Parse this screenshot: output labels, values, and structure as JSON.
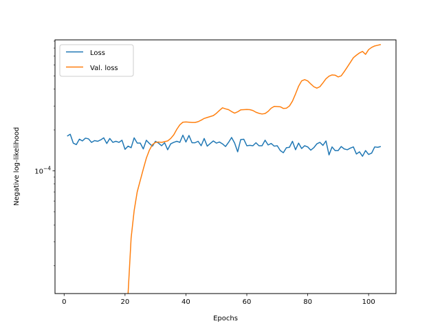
{
  "chart_data": {
    "type": "line",
    "xlabel": "Epochs",
    "ylabel": "Negative log-likelihood",
    "yscale": "log",
    "xlim": [
      -3,
      109
    ],
    "ylim": [
      1.25e-05,
      0.00092
    ],
    "x_ticks": [
      0,
      20,
      40,
      60,
      80,
      100
    ],
    "x_tick_labels": [
      "0",
      "20",
      "40",
      "60",
      "80",
      "100"
    ],
    "y_ticks": [
      0.0001
    ],
    "y_tick_labels": [
      {
        "base": "10",
        "exp": "−4"
      }
    ],
    "grid": false,
    "legend_position": "top-left",
    "series": [
      {
        "name": "Loss",
        "color": "#1f77b4",
        "x": [
          1,
          2,
          3,
          4,
          5,
          6,
          7,
          8,
          9,
          10,
          11,
          12,
          13,
          14,
          15,
          16,
          17,
          18,
          19,
          20,
          21,
          22,
          23,
          24,
          25,
          26,
          27,
          28,
          29,
          30,
          31,
          32,
          33,
          34,
          35,
          36,
          37,
          38,
          39,
          40,
          41,
          42,
          43,
          44,
          45,
          46,
          47,
          48,
          49,
          50,
          51,
          52,
          53,
          54,
          55,
          56,
          57,
          58,
          59,
          60,
          61,
          62,
          63,
          64,
          65,
          66,
          67,
          68,
          69,
          70,
          71,
          72,
          73,
          74,
          75,
          76,
          77,
          78,
          79,
          80,
          81,
          82,
          83,
          84,
          85,
          86,
          87,
          88,
          89,
          90,
          91,
          92,
          93,
          94,
          95,
          96,
          97,
          98,
          99,
          100,
          101,
          102,
          103,
          104
        ],
        "values": [
          0.00018,
          0.000186,
          0.00016,
          0.000156,
          0.000171,
          0.000166,
          0.000174,
          0.000172,
          0.000162,
          0.000167,
          0.000165,
          0.000169,
          0.000175,
          0.000159,
          0.000173,
          0.000162,
          0.000165,
          0.000162,
          0.000168,
          0.000144,
          0.000152,
          0.000148,
          0.000175,
          0.00016,
          0.00016,
          0.000145,
          0.000168,
          0.000159,
          0.000152,
          0.000165,
          0.00016,
          0.000153,
          0.000161,
          0.000143,
          0.000158,
          0.000162,
          0.000165,
          0.000162,
          0.000183,
          0.000163,
          0.000182,
          0.000161,
          0.000161,
          0.000165,
          0.000153,
          0.000173,
          0.000152,
          0.000159,
          0.000166,
          0.00016,
          0.000163,
          0.000158,
          0.000151,
          0.000162,
          0.000176,
          0.00016,
          0.000138,
          0.00017,
          0.000171,
          0.000153,
          0.000154,
          0.000153,
          0.000161,
          0.000153,
          0.000153,
          0.000168,
          0.000155,
          0.000159,
          0.000152,
          0.000153,
          0.000141,
          0.000136,
          0.000148,
          0.000149,
          0.000165,
          0.000143,
          0.00016,
          0.000146,
          0.000153,
          0.00015,
          0.000142,
          0.000148,
          0.000158,
          0.000162,
          0.000154,
          0.000166,
          0.000131,
          0.00015,
          0.000141,
          0.000141,
          0.000151,
          0.000145,
          0.000143,
          0.000147,
          0.00015,
          0.000133,
          0.000138,
          0.000128,
          0.000141,
          0.000132,
          0.000135,
          0.00015,
          0.000149,
          0.000151
        ]
      },
      {
        "name": "Val. loss",
        "color": "#ff7f0e",
        "x": [
          21,
          22,
          23,
          24,
          25,
          26,
          27,
          28,
          29,
          30,
          31,
          32,
          33,
          34,
          35,
          36,
          37,
          38,
          39,
          40,
          41,
          42,
          43,
          44,
          45,
          46,
          47,
          48,
          49,
          50,
          51,
          52,
          53,
          54,
          55,
          56,
          57,
          58,
          59,
          60,
          61,
          62,
          63,
          64,
          65,
          66,
          67,
          68,
          69,
          70,
          71,
          72,
          73,
          74,
          75,
          76,
          77,
          78,
          79,
          80,
          81,
          82,
          83,
          84,
          85,
          86,
          87,
          88,
          89,
          90,
          91,
          92,
          93,
          94,
          95,
          96,
          97,
          98,
          99,
          100,
          101,
          102,
          103,
          104
        ],
        "values": [
          1.25e-05,
          3.2e-05,
          5.1e-05,
          7e-05,
          8.5e-05,
          0.000103,
          0.000124,
          0.000142,
          0.000156,
          0.000162,
          0.000163,
          0.000162,
          0.000164,
          0.000166,
          0.000173,
          0.000184,
          0.000202,
          0.000218,
          0.000228,
          0.000229,
          0.000228,
          0.000227,
          0.000227,
          0.00023,
          0.000236,
          0.000243,
          0.000247,
          0.000251,
          0.000255,
          0.000265,
          0.000278,
          0.000291,
          0.000286,
          0.000282,
          0.000273,
          0.000266,
          0.000272,
          0.000281,
          0.000282,
          0.000283,
          0.000282,
          0.000278,
          0.00027,
          0.000265,
          0.000262,
          0.000264,
          0.000274,
          0.000289,
          0.000298,
          0.000297,
          0.000296,
          0.000288,
          0.000289,
          0.0003,
          0.000326,
          0.000368,
          0.000419,
          0.000459,
          0.000469,
          0.000459,
          0.000436,
          0.000416,
          0.000406,
          0.000416,
          0.000444,
          0.000476,
          0.000497,
          0.000508,
          0.000506,
          0.000491,
          0.0005,
          0.000537,
          0.00058,
          0.000628,
          0.00068,
          0.00071,
          0.000737,
          0.000756,
          0.00072,
          0.00078,
          0.00081,
          0.00083,
          0.00084,
          0.00085
        ]
      }
    ]
  }
}
